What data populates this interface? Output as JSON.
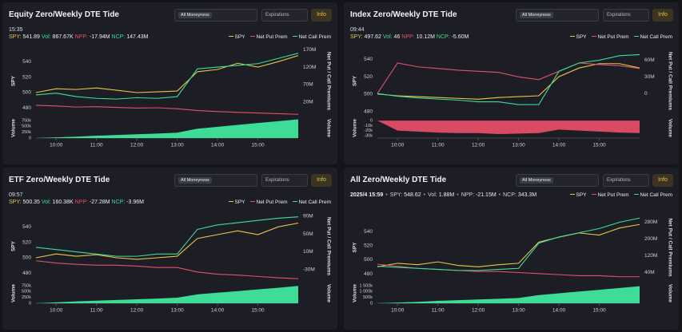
{
  "chart_data": [
    {
      "type": "line",
      "title": "Equity Zero/Weekly DTE Tide",
      "filter": "All Moneyness",
      "expirations": "Expirations",
      "info": "Info",
      "time": "15:35",
      "stats": [
        {
          "label": "SPY:",
          "value": "541.89",
          "color": "#e8c547"
        },
        {
          "label": "Vol:",
          "value": "867.67K",
          "color": "#3ddc97"
        },
        {
          "label": "NPP:",
          "value": "-17.94M",
          "color": "#e0506b"
        },
        {
          "label": "NCP:",
          "value": "147.43M",
          "color": "#3ddc97"
        }
      ],
      "x": [
        "09:30",
        "10:00",
        "10:30",
        "11:00",
        "11:30",
        "12:00",
        "12:30",
        "13:00",
        "13:30",
        "14:00",
        "14:30",
        "15:00",
        "15:30",
        "16:00"
      ],
      "xlim": [
        "09:30",
        "16:00"
      ],
      "xticks": [
        "10:00",
        "11:00",
        "12:00",
        "13:00",
        "14:00",
        "15:00"
      ],
      "ylabel": "SPY",
      "ylim": [
        470,
        560
      ],
      "yticks": [
        480,
        500,
        520,
        540
      ],
      "y2label": "Net Put / Call Premiums",
      "y2lim": [
        -20000000,
        180000000
      ],
      "y2ticks": [
        {
          "value": 20000000,
          "label": "20M"
        },
        {
          "value": 70000000,
          "label": "70M"
        },
        {
          "value": 120000000,
          "label": "120M"
        },
        {
          "value": 170000000,
          "label": "170M"
        }
      ],
      "series": [
        {
          "name": "SPY",
          "color": "#e8c547",
          "axis": "y",
          "values": [
            500,
            505,
            504,
            506,
            503,
            500,
            501,
            502,
            527,
            530,
            538,
            533,
            540,
            548
          ]
        },
        {
          "name": "Net Put Prem",
          "color": "#e0506b",
          "axis": "y2",
          "values": [
            10000000,
            8000000,
            5000000,
            6000000,
            4000000,
            2000000,
            3000000,
            0,
            -5000000,
            -8000000,
            -10000000,
            -12000000,
            -14000000,
            -16000000
          ]
        },
        {
          "name": "Net Call Prem",
          "color": "#3ddc97",
          "axis": "y2",
          "values": [
            40000000,
            45000000,
            35000000,
            30000000,
            28000000,
            32000000,
            30000000,
            35000000,
            115000000,
            120000000,
            125000000,
            130000000,
            145000000,
            160000000
          ]
        }
      ],
      "volume": {
        "label": "Volume",
        "color": "#3ddc97",
        "ylim": [
          0,
          850000
        ],
        "yticks": [
          0,
          {
            "value": 250000,
            "label": "250k"
          },
          {
            "value": 500000,
            "label": "500k"
          },
          {
            "value": 750000,
            "label": "750k"
          }
        ],
        "values": [
          0,
          30000,
          60000,
          100000,
          130000,
          160000,
          190000,
          230000,
          400000,
          480000,
          560000,
          640000,
          720000,
          800000
        ]
      }
    },
    {
      "type": "line",
      "title": "Index Zero/Weekly DTE Tide",
      "filter": "All Moneyness",
      "expirations": "Expirations",
      "info": "Info",
      "time": "09:44",
      "stats": [
        {
          "label": "SPY:",
          "value": "497.62",
          "color": "#e8c547"
        },
        {
          "label": "Vol:",
          "value": "46",
          "color": "#3ddc97"
        },
        {
          "label": "NPP:",
          "value": "10.12M",
          "color": "#e0506b"
        },
        {
          "label": "NCP:",
          "value": "-5.60M",
          "color": "#3ddc97"
        }
      ],
      "x": [
        "09:30",
        "10:00",
        "10:30",
        "11:00",
        "11:30",
        "12:00",
        "12:30",
        "13:00",
        "13:30",
        "14:00",
        "14:30",
        "15:00",
        "15:30",
        "16:00"
      ],
      "xlim": [
        "09:30",
        "16:00"
      ],
      "xticks": [
        "10:00",
        "11:00",
        "12:00",
        "13:00",
        "14:00",
        "15:00"
      ],
      "ylabel": "SPY",
      "ylim": [
        475,
        555
      ],
      "yticks": [
        480,
        500,
        520,
        540
      ],
      "y2label": "Net Put / Call Premiums",
      "y2lim": [
        -40000000,
        85000000
      ],
      "y2ticks": [
        0,
        {
          "value": 30000000,
          "label": "30M"
        },
        {
          "value": 60000000,
          "label": "60M"
        }
      ],
      "series": [
        {
          "name": "SPY",
          "color": "#e8c547",
          "axis": "y",
          "values": [
            500,
            498,
            497,
            496,
            495,
            494,
            496,
            497,
            498,
            520,
            530,
            535,
            535,
            530
          ]
        },
        {
          "name": "Net Put Prem",
          "color": "#e0506b",
          "axis": "y2",
          "values": [
            0,
            55000000,
            48000000,
            45000000,
            42000000,
            40000000,
            38000000,
            30000000,
            25000000,
            40000000,
            55000000,
            52000000,
            50000000,
            45000000
          ]
        },
        {
          "name": "Net Call Prem",
          "color": "#3ddc97",
          "axis": "y2",
          "values": [
            0,
            -5000000,
            -8000000,
            -10000000,
            -12000000,
            -15000000,
            -15000000,
            -20000000,
            -20000000,
            40000000,
            55000000,
            60000000,
            68000000,
            70000000
          ]
        }
      ],
      "volume": {
        "label": "Volume",
        "color": "#d94a63",
        "ylim": [
          -35000,
          5000
        ],
        "yticks": [
          0,
          {
            "value": -10000,
            "label": "-10k"
          },
          {
            "value": -20000,
            "label": "-20k"
          },
          {
            "value": -30000,
            "label": "-30k"
          }
        ],
        "values": [
          0,
          -20000,
          -22000,
          -24000,
          -25000,
          -25000,
          -27000,
          -26000,
          -25000,
          -18000,
          -20000,
          -22000,
          -24000,
          -25000
        ]
      }
    },
    {
      "type": "line",
      "title": "ETF Zero/Weekly DTE Tide",
      "filter": "All Moneyness",
      "expirations": "Expirations",
      "info": "Info",
      "time": "09:57",
      "stats": [
        {
          "label": "SPY:",
          "value": "500.35",
          "color": "#e8c547"
        },
        {
          "label": "Vol:",
          "value": "160.38K",
          "color": "#3ddc97"
        },
        {
          "label": "NPP:",
          "value": "-27.28M",
          "color": "#e0506b"
        },
        {
          "label": "NCP:",
          "value": "-3.96M",
          "color": "#3ddc97"
        }
      ],
      "x": [
        "09:30",
        "10:00",
        "10:30",
        "11:00",
        "11:30",
        "12:00",
        "12:30",
        "13:00",
        "13:30",
        "14:00",
        "14:30",
        "15:00",
        "15:30",
        "16:00"
      ],
      "xlim": [
        "09:30",
        "16:00"
      ],
      "xticks": [
        "10:00",
        "11:00",
        "12:00",
        "13:00",
        "14:00",
        "15:00"
      ],
      "ylabel": "SPY",
      "ylim": [
        470,
        560
      ],
      "yticks": [
        480,
        500,
        520,
        540
      ],
      "y2label": "Net Put / Call Premiums",
      "y2lim": [
        -55000000,
        100000000
      ],
      "y2ticks": [
        {
          "value": -30000000,
          "label": "-30M"
        },
        {
          "value": 10000000,
          "label": "10M"
        },
        {
          "value": 50000000,
          "label": "50M"
        },
        {
          "value": 90000000,
          "label": "90M"
        }
      ],
      "series": [
        {
          "name": "SPY",
          "color": "#e8c547",
          "axis": "y",
          "values": [
            500,
            505,
            502,
            504,
            500,
            498,
            500,
            502,
            525,
            530,
            535,
            530,
            540,
            545
          ]
        },
        {
          "name": "Net Put Prem",
          "color": "#e0506b",
          "axis": "y2",
          "values": [
            -10000000,
            -15000000,
            -18000000,
            -20000000,
            -20000000,
            -22000000,
            -25000000,
            -25000000,
            -35000000,
            -40000000,
            -42000000,
            -45000000,
            -48000000,
            -50000000
          ]
        },
        {
          "name": "Net Call Prem",
          "color": "#3ddc97",
          "axis": "y2",
          "values": [
            20000000,
            15000000,
            10000000,
            5000000,
            0,
            0,
            5000000,
            5000000,
            60000000,
            70000000,
            75000000,
            80000000,
            85000000,
            88000000
          ]
        }
      ],
      "volume": {
        "label": "Volume",
        "color": "#3ddc97",
        "ylim": [
          0,
          850000
        ],
        "yticks": [
          0,
          {
            "value": 250000,
            "label": "250k"
          },
          {
            "value": 500000,
            "label": "500k"
          },
          {
            "value": 750000,
            "label": "750k"
          }
        ],
        "values": [
          0,
          40000,
          80000,
          110000,
          140000,
          170000,
          200000,
          240000,
          380000,
          450000,
          520000,
          590000,
          660000,
          740000
        ]
      }
    },
    {
      "type": "line",
      "title": "All Zero/Weekly DTE Tide",
      "filter": "All Moneyness",
      "expirations": "Expirations",
      "info": "Info",
      "time": "2025/4 15:59",
      "separator": "•",
      "stats": [
        {
          "label": "SPY:",
          "value": "548.62",
          "color": "#cfcfcf"
        },
        {
          "label": "Vol:",
          "value": "1.88M",
          "color": "#cfcfcf"
        },
        {
          "label": "NPP:",
          "value": "-21.15M",
          "color": "#cfcfcf"
        },
        {
          "label": "NCP:",
          "value": "343.3M",
          "color": "#cfcfcf"
        }
      ],
      "x": [
        "09:30",
        "10:00",
        "10:30",
        "11:00",
        "11:30",
        "12:00",
        "12:30",
        "13:00",
        "13:30",
        "14:00",
        "14:30",
        "15:00",
        "15:30",
        "16:00"
      ],
      "xlim": [
        "09:30",
        "16:00"
      ],
      "xticks": [
        "10:00",
        "11:00",
        "12:00",
        "13:00",
        "14:00",
        "15:00"
      ],
      "ylabel": "SPY",
      "ylim": [
        470,
        565
      ],
      "yticks": [
        480,
        500,
        520,
        540
      ],
      "y2label": "Net Put / Call Premiums",
      "y2lim": [
        0,
        320000000
      ],
      "y2ticks": [
        {
          "value": 40000000,
          "label": "40M"
        },
        {
          "value": 120000000,
          "label": "120M"
        },
        {
          "value": 200000000,
          "label": "200M"
        },
        {
          "value": 280000000,
          "label": "280M"
        }
      ],
      "series": [
        {
          "name": "SPY",
          "color": "#e8c547",
          "axis": "y",
          "values": [
            490,
            495,
            493,
            497,
            492,
            490,
            493,
            495,
            525,
            532,
            538,
            535,
            545,
            550
          ]
        },
        {
          "name": "Net Put Prem",
          "color": "#e0506b",
          "axis": "y2",
          "values": [
            80000000,
            70000000,
            60000000,
            55000000,
            50000000,
            45000000,
            45000000,
            40000000,
            35000000,
            30000000,
            25000000,
            25000000,
            20000000,
            20000000
          ]
        },
        {
          "name": "Net Call Prem",
          "color": "#3ddc97",
          "axis": "y2",
          "values": [
            70000000,
            65000000,
            60000000,
            55000000,
            50000000,
            50000000,
            55000000,
            60000000,
            180000000,
            210000000,
            230000000,
            250000000,
            280000000,
            300000000
          ]
        }
      ],
      "volume": {
        "label": "Volume",
        "color": "#3ddc97",
        "ylim": [
          0,
          1700000
        ],
        "yticks": [
          0,
          {
            "value": 500000,
            "label": "500k"
          },
          {
            "value": 1000000,
            "label": "1 000k"
          },
          {
            "value": 1500000,
            "label": "1 500k"
          }
        ],
        "values": [
          0,
          60000,
          120000,
          200000,
          260000,
          320000,
          380000,
          450000,
          700000,
          850000,
          1000000,
          1150000,
          1300000,
          1450000
        ]
      }
    }
  ]
}
